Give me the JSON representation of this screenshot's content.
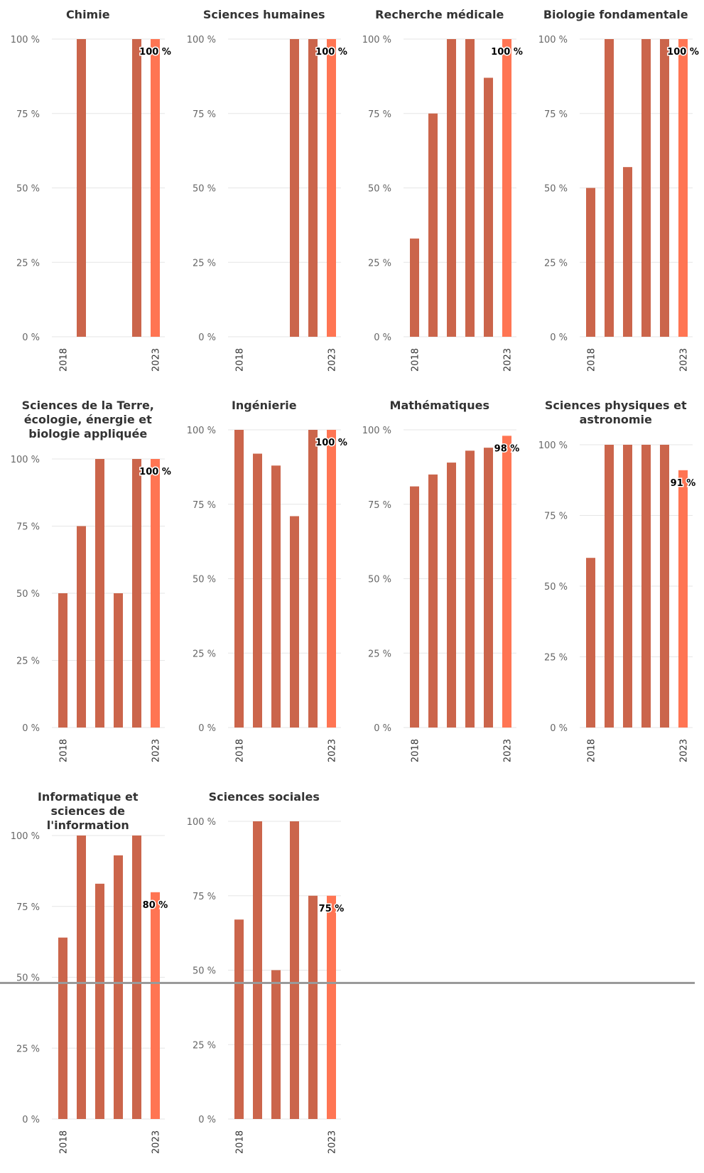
{
  "colors": {
    "bar": "#cb654b",
    "bar_last": "#ff7553",
    "grid": "#e6e6e6",
    "axis_text": "#666666"
  },
  "chart_data": [
    {
      "type": "bar",
      "title": "Chimie",
      "categories": [
        "2018",
        "2019",
        "2020",
        "2021",
        "2022",
        "2023"
      ],
      "values": [
        0,
        100,
        0,
        0,
        100,
        100
      ],
      "ylim": [
        0,
        100
      ],
      "ytick_labels": [
        "0 %",
        "25 %",
        "50 %",
        "75 %",
        "100 %"
      ],
      "xtick_labels": [
        "2018",
        "2023"
      ],
      "data_label": "100 %"
    },
    {
      "type": "bar",
      "title": "Sciences humaines",
      "categories": [
        "2018",
        "2019",
        "2020",
        "2021",
        "2022",
        "2023"
      ],
      "values": [
        0,
        0,
        0,
        100,
        100,
        100
      ],
      "ylim": [
        0,
        100
      ],
      "ytick_labels": [
        "0 %",
        "25 %",
        "50 %",
        "75 %",
        "100 %"
      ],
      "xtick_labels": [
        "2018",
        "2023"
      ],
      "data_label": "100 %"
    },
    {
      "type": "bar",
      "title": "Recherche médicale",
      "categories": [
        "2018",
        "2019",
        "2020",
        "2021",
        "2022",
        "2023"
      ],
      "values": [
        33,
        75,
        100,
        100,
        87,
        100
      ],
      "ylim": [
        0,
        100
      ],
      "ytick_labels": [
        "0 %",
        "25 %",
        "50 %",
        "75 %",
        "100 %"
      ],
      "xtick_labels": [
        "2018",
        "2023"
      ],
      "data_label": "100 %"
    },
    {
      "type": "bar",
      "title": "Biologie fondamentale",
      "categories": [
        "2018",
        "2019",
        "2020",
        "2021",
        "2022",
        "2023"
      ],
      "values": [
        50,
        100,
        57,
        100,
        100,
        100
      ],
      "ylim": [
        0,
        100
      ],
      "ytick_labels": [
        "0 %",
        "25 %",
        "50 %",
        "75 %",
        "100 %"
      ],
      "xtick_labels": [
        "2018",
        "2023"
      ],
      "data_label": "100 %"
    },
    {
      "type": "bar",
      "title": "Sciences de la Terre, écologie, énergie et biologie appliquée",
      "categories": [
        "2018",
        "2019",
        "2020",
        "2021",
        "2022",
        "2023"
      ],
      "values": [
        50,
        75,
        100,
        50,
        100,
        100
      ],
      "ylim": [
        0,
        100
      ],
      "ytick_labels": [
        "0 %",
        "25 %",
        "50 %",
        "75 %",
        "100 %"
      ],
      "xtick_labels": [
        "2018",
        "2023"
      ],
      "data_label": "100 %"
    },
    {
      "type": "bar",
      "title": "Ingénierie",
      "categories": [
        "2018",
        "2019",
        "2020",
        "2021",
        "2022",
        "2023"
      ],
      "values": [
        100,
        92,
        88,
        71,
        100,
        100
      ],
      "ylim": [
        0,
        100
      ],
      "ytick_labels": [
        "0 %",
        "25 %",
        "50 %",
        "75 %",
        "100 %"
      ],
      "xtick_labels": [
        "2018",
        "2023"
      ],
      "data_label": "100 %"
    },
    {
      "type": "bar",
      "title": "Mathématiques",
      "categories": [
        "2018",
        "2019",
        "2020",
        "2021",
        "2022",
        "2023"
      ],
      "values": [
        81,
        85,
        89,
        93,
        94,
        98
      ],
      "ylim": [
        0,
        100
      ],
      "ytick_labels": [
        "0 %",
        "25 %",
        "50 %",
        "75 %",
        "100 %"
      ],
      "xtick_labels": [
        "2018",
        "2023"
      ],
      "data_label": "98 %"
    },
    {
      "type": "bar",
      "title": "Sciences physiques et astronomie",
      "categories": [
        "2018",
        "2019",
        "2020",
        "2021",
        "2022",
        "2023"
      ],
      "values": [
        60,
        100,
        100,
        100,
        100,
        91
      ],
      "ylim": [
        0,
        100
      ],
      "ytick_labels": [
        "0 %",
        "25 %",
        "50 %",
        "75 %",
        "100 %"
      ],
      "xtick_labels": [
        "2018",
        "2023"
      ],
      "data_label": "91 %"
    },
    {
      "type": "bar",
      "title": "Informatique et sciences de l'information",
      "categories": [
        "2018",
        "2019",
        "2020",
        "2021",
        "2022",
        "2023"
      ],
      "values": [
        64,
        100,
        83,
        93,
        100,
        80
      ],
      "ylim": [
        0,
        100
      ],
      "ytick_labels": [
        "0 %",
        "25 %",
        "50 %",
        "75 %",
        "100 %"
      ],
      "xtick_labels": [
        "2018",
        "2023"
      ],
      "data_label": "80 %"
    },
    {
      "type": "bar",
      "title": "Sciences sociales",
      "categories": [
        "2018",
        "2019",
        "2020",
        "2021",
        "2022",
        "2023"
      ],
      "values": [
        67,
        100,
        50,
        100,
        75,
        75
      ],
      "ylim": [
        0,
        100
      ],
      "ytick_labels": [
        "0 %",
        "25 %",
        "50 %",
        "75 %",
        "100 %"
      ],
      "xtick_labels": [
        "2018",
        "2023"
      ],
      "data_label": "75 %"
    }
  ]
}
